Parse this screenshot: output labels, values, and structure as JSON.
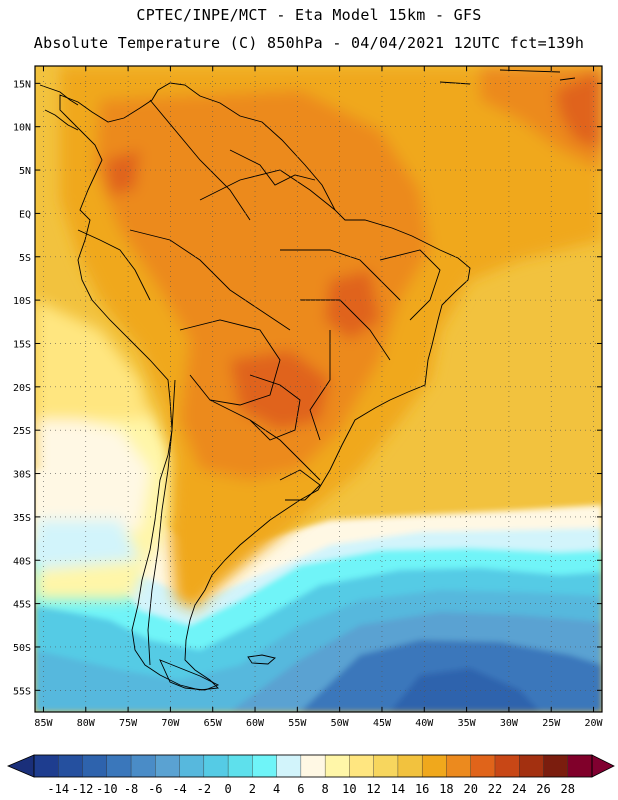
{
  "header": {
    "line1": "CPTEC/INPE/MCT -  Eta Model 15km - GFS",
    "line2": "Absolute Temperature (C) 850hPa - 04/04/2021 12UTC fct=139h"
  },
  "map": {
    "lon_range": [
      -86,
      -19
    ],
    "lat_range": [
      -57.5,
      17
    ],
    "lat_ticks": [
      {
        "value": 15,
        "label": "15N"
      },
      {
        "value": 10,
        "label": "10N"
      },
      {
        "value": 5,
        "label": "5N"
      },
      {
        "value": 0,
        "label": "EQ"
      },
      {
        "value": -5,
        "label": "5S"
      },
      {
        "value": -10,
        "label": "10S"
      },
      {
        "value": -15,
        "label": "15S"
      },
      {
        "value": -20,
        "label": "20S"
      },
      {
        "value": -25,
        "label": "25S"
      },
      {
        "value": -30,
        "label": "30S"
      },
      {
        "value": -35,
        "label": "35S"
      },
      {
        "value": -40,
        "label": "40S"
      },
      {
        "value": -45,
        "label": "45S"
      },
      {
        "value": -50,
        "label": "50S"
      },
      {
        "value": -55,
        "label": "55S"
      }
    ],
    "lon_ticks": [
      {
        "value": -85,
        "label": "85W"
      },
      {
        "value": -80,
        "label": "80W"
      },
      {
        "value": -75,
        "label": "75W"
      },
      {
        "value": -70,
        "label": "70W"
      },
      {
        "value": -65,
        "label": "65W"
      },
      {
        "value": -60,
        "label": "60W"
      },
      {
        "value": -55,
        "label": "55W"
      },
      {
        "value": -50,
        "label": "50W"
      },
      {
        "value": -45,
        "label": "45W"
      },
      {
        "value": -40,
        "label": "40W"
      },
      {
        "value": -35,
        "label": "35W"
      },
      {
        "value": -30,
        "label": "30W"
      },
      {
        "value": -25,
        "label": "25W"
      },
      {
        "value": -20,
        "label": "20W"
      }
    ]
  },
  "colorbar": {
    "levels": [
      "-14",
      "-12",
      "-10",
      "-8",
      "-6",
      "-4",
      "-2",
      "0",
      "2",
      "4",
      "6",
      "8",
      "10",
      "12",
      "14",
      "16",
      "18",
      "20",
      "22",
      "24",
      "26",
      "28"
    ],
    "colors": [
      "#1e3d8f",
      "#25509f",
      "#2e63ad",
      "#3a77bb",
      "#4a8cc7",
      "#5aa2d2",
      "#57b8dd",
      "#55cbe5",
      "#5ee0ec",
      "#6ff4f8",
      "#d2f4fb",
      "#fff8e4",
      "#fff6a8",
      "#ffe680",
      "#f7d65e",
      "#f2c23e",
      "#f0a81c",
      "#ec8a1e",
      "#e0641a",
      "#c84716",
      "#a33010",
      "#7b1d0e",
      "#80002a"
    ],
    "low_color": "#1a2f7a",
    "high_color": "#800030"
  }
}
